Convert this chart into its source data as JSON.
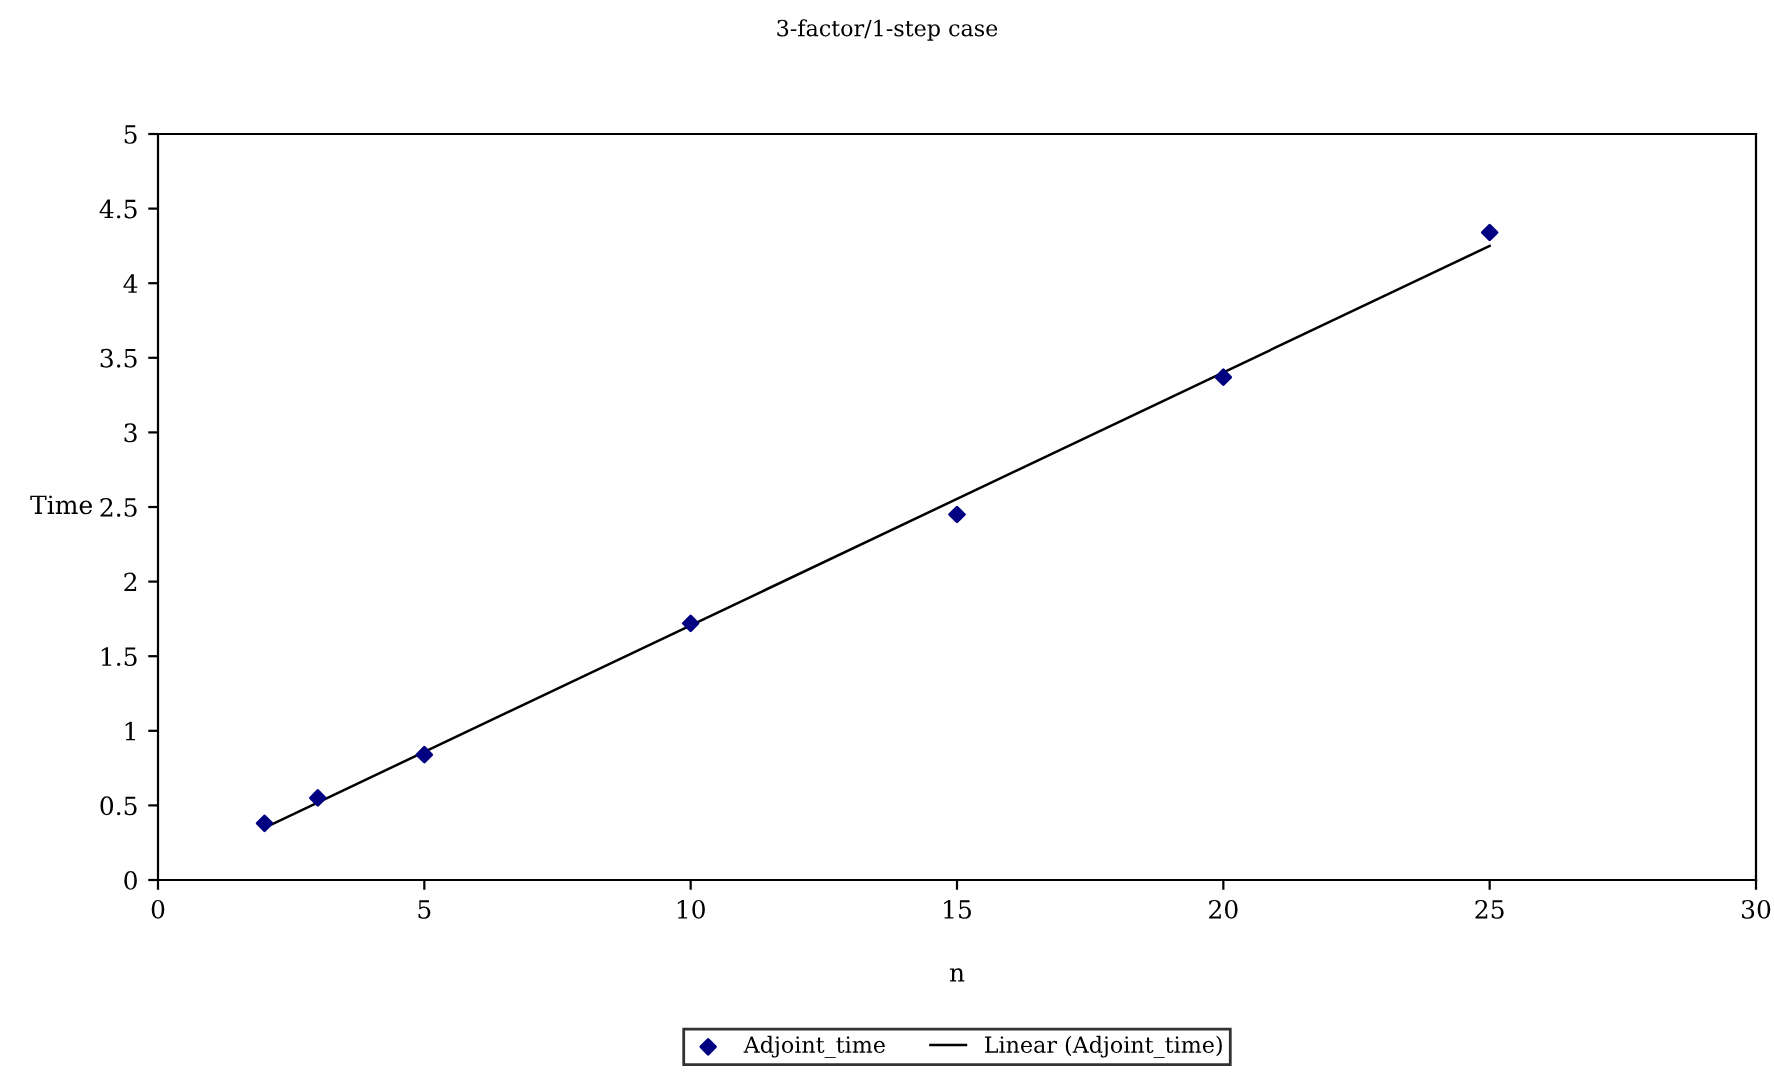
{
  "chart_data": {
    "type": "scatter",
    "title": "3-factor/1-step case",
    "xlabel": "n",
    "ylabel": "Time",
    "series": [
      {
        "name": "Adjoint_time",
        "color": "#000080",
        "marker": "diamond",
        "x": [
          2,
          3,
          5,
          10,
          15,
          20,
          25
        ],
        "values": [
          0.38,
          0.55,
          0.84,
          1.72,
          2.45,
          3.37,
          4.34
        ]
      },
      {
        "name": "Linear (Adjoint_time)",
        "type": "line",
        "color": "#000000",
        "marker": "none",
        "line_style": "solid",
        "x": [
          2,
          25
        ],
        "values": [
          0.35,
          4.25
        ]
      }
    ],
    "xlim": [
      0,
      30
    ],
    "xticks": [
      0,
      5,
      10,
      15,
      20,
      25,
      30
    ],
    "ylim": [
      0,
      5
    ],
    "yticks": [
      0,
      0.5,
      1,
      1.5,
      2,
      2.5,
      3,
      3.5,
      4,
      4.5,
      5
    ],
    "grid": false,
    "legend": "bottom"
  }
}
